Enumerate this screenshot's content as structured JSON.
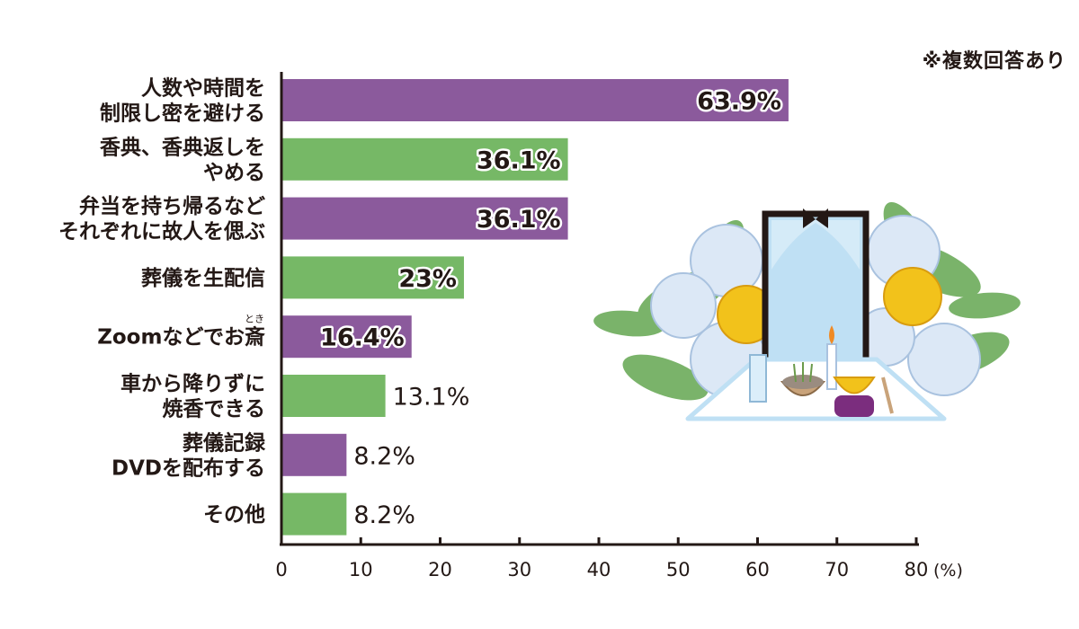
{
  "note": "※複数回答あり",
  "colors": {
    "purple": "#8b5a9c",
    "green": "#76b866",
    "axis": "#231815"
  },
  "chart_data": {
    "type": "bar",
    "orientation": "horizontal",
    "title": "",
    "xlabel": "",
    "ylabel": "",
    "unit": "(%)",
    "xlim": [
      0,
      80
    ],
    "xticks": [
      "0",
      "10",
      "20",
      "30",
      "40",
      "50",
      "60",
      "70",
      "80"
    ],
    "grid": false,
    "categories": [
      [
        "人数や時間を",
        "制限し密を避ける"
      ],
      [
        "香典、香典返しを",
        "やめる"
      ],
      [
        "弁当を持ち帰るなど",
        "それぞれに故人を偲ぶ"
      ],
      [
        "葬儀を生配信"
      ],
      [
        "Zoomなどでお斎"
      ],
      [
        "車から降りずに",
        "焼香できる"
      ],
      [
        "葬儀記録",
        "DVDを配布する"
      ],
      [
        "その他"
      ]
    ],
    "ruby": {
      "category_index": 4,
      "base": "斎",
      "text": "とき"
    },
    "values": [
      63.9,
      36.1,
      36.1,
      23,
      16.4,
      13.1,
      8.2,
      8.2
    ],
    "value_labels": [
      "63.9%",
      "36.1%",
      "36.1%",
      "23%",
      "16.4%",
      "13.1%",
      "8.2%",
      "8.2%"
    ],
    "bar_colors": [
      "purple",
      "green",
      "purple",
      "green",
      "purple",
      "green",
      "purple",
      "green"
    ],
    "label_inside": [
      true,
      true,
      true,
      true,
      true,
      false,
      false,
      false
    ]
  }
}
